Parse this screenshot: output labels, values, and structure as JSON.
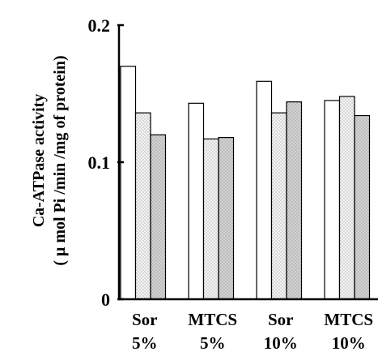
{
  "chart_data": {
    "type": "bar",
    "ylabel_line1": "Ca-ATPase activity",
    "ylabel_line2": "( μ mol Pi /min /mg of protein)",
    "ylim": [
      0,
      0.2
    ],
    "yticks": [
      {
        "value": 0,
        "label": "0"
      },
      {
        "value": 0.1,
        "label": "0.1"
      },
      {
        "value": 0.2,
        "label": "0.2"
      }
    ],
    "categories": [
      {
        "line1": "Sor",
        "line2": "5%"
      },
      {
        "line1": "MTCS",
        "line2": "5%"
      },
      {
        "line1": "Sor",
        "line2": "10%"
      },
      {
        "line1": "MTCS",
        "line2": "10%"
      }
    ],
    "series": [
      {
        "pattern": "white",
        "values": [
          0.17,
          0.143,
          0.159,
          0.145
        ]
      },
      {
        "pattern": "dotted",
        "values": [
          0.136,
          0.117,
          0.136,
          0.148
        ]
      },
      {
        "pattern": "gray-dotted",
        "values": [
          0.12,
          0.118,
          0.144,
          0.134
        ]
      }
    ],
    "grid": false,
    "legend": "none",
    "colors": {
      "axis": "#000000",
      "bar_outline": "#000000",
      "white_fill": "#ffffff",
      "dotted_fill": "#f2f2f2",
      "gray_fill": "#cfcfcf"
    }
  }
}
